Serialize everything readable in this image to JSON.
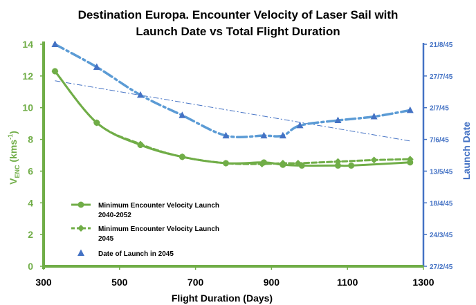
{
  "chart_data": {
    "type": "line",
    "title_line1": "Destination Europa. Encounter Velocity of Laser Sail with",
    "title_line2": "Launch Date vs Total Flight Duration",
    "xlabel": "Flight Duration (Days)",
    "ylabel_left_main": "V",
    "ylabel_left_sub": "ENC",
    "ylabel_left_unit_open": " (kms",
    "ylabel_left_sup": "-1",
    "ylabel_left_unit_close": ")",
    "ylabel_right": "Launch Date",
    "xlim": [
      300,
      1300
    ],
    "ylim_left": [
      0,
      14
    ],
    "ylim_right_index": [
      0,
      7
    ],
    "x_ticks": [
      "300",
      "500",
      "700",
      "900",
      "1100",
      "1300"
    ],
    "y_left_ticks": [
      "0",
      "2",
      "4",
      "6",
      "8",
      "10",
      "12",
      "14"
    ],
    "y_right_ticks": [
      "27/2/45",
      "24/3/45",
      "18/4/45",
      "13/5/45",
      "7/6/45",
      "2/7/45",
      "27/7/45",
      "21/8/45"
    ],
    "series": [
      {
        "name_line1": "Minimum Encounter Velocity Launch",
        "name_line2": "2040-2052",
        "axis": "left",
        "color": "#70ad47",
        "style": "solid",
        "marker": "circle",
        "x": [
          330,
          440,
          555,
          665,
          780,
          880,
          930,
          980,
          1075,
          1110,
          1265
        ],
        "y": [
          12.3,
          9.05,
          7.65,
          6.9,
          6.5,
          6.55,
          6.4,
          6.35,
          6.35,
          6.35,
          6.55
        ]
      },
      {
        "name_line1": "Minimum Encounter Velocity Launch",
        "name_line2": "2045",
        "axis": "left",
        "color": "#70ad47",
        "style": "dashed",
        "marker": "diamond",
        "x": [
          330,
          440,
          555,
          665,
          780,
          875,
          930,
          970,
          1075,
          1170,
          1265
        ],
        "y": [
          12.3,
          9.05,
          7.7,
          6.9,
          6.5,
          6.45,
          6.5,
          6.5,
          6.6,
          6.7,
          6.75
        ]
      },
      {
        "name_line1": "Date of Launch in 2045",
        "name_line2": "",
        "axis": "right",
        "color": "#5b9bd5",
        "style": "dashdot",
        "marker": "triangle",
        "x": [
          330,
          440,
          555,
          665,
          780,
          880,
          930,
          975,
          1075,
          1170,
          1265
        ],
        "y": [
          "21/8/45",
          "3/8/45",
          "12/7/45",
          "26/6/45",
          "10/6/45",
          "10/6/45",
          "10/6/45",
          "18/6/45",
          "22/6/45",
          "25/6/45",
          "30/6/45"
        ]
      }
    ],
    "trendline": {
      "color": "#4472c4",
      "style": "dashdot-thin",
      "axis": "left",
      "x": [
        330,
        1265
      ],
      "y": [
        11.7,
        7.9
      ]
    },
    "legend_position": "lower-left",
    "grid": false
  }
}
